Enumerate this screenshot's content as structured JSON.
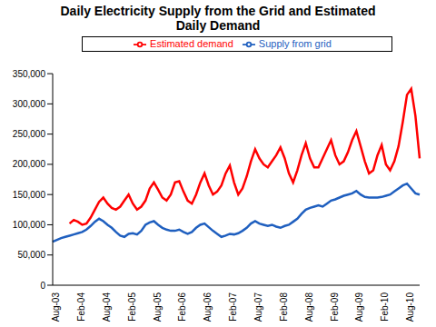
{
  "chart_data": {
    "type": "line",
    "title": "Daily Electricity Supply from the Grid and Estimated Daily Demand",
    "categories": [
      "Aug-03",
      null,
      null,
      null,
      null,
      null,
      "Feb-04",
      null,
      null,
      null,
      null,
      null,
      "Aug-04",
      null,
      null,
      null,
      null,
      null,
      "Feb-05",
      null,
      null,
      null,
      null,
      null,
      "Aug-05",
      null,
      null,
      null,
      null,
      null,
      "Feb-06",
      null,
      null,
      null,
      null,
      null,
      "Aug-06",
      null,
      null,
      null,
      null,
      null,
      "Feb-07",
      null,
      null,
      null,
      null,
      null,
      "Aug-07",
      null,
      null,
      null,
      null,
      null,
      "Feb-08",
      null,
      null,
      null,
      null,
      null,
      "Aug-08",
      null,
      null,
      null,
      null,
      null,
      "Feb-09",
      null,
      null,
      null,
      null,
      null,
      "Aug-09",
      null,
      null,
      null,
      null,
      null,
      "Feb-10",
      null,
      null,
      null,
      null,
      null,
      "Aug-10",
      null,
      null,
      null
    ],
    "series": [
      {
        "name": "Supply from grid",
        "color": "#1f5fbf",
        "values": [
          72000,
          75000,
          78000,
          80000,
          82000,
          84000,
          86000,
          88000,
          92000,
          98000,
          105000,
          110000,
          106000,
          100000,
          95000,
          88000,
          82000,
          80000,
          85000,
          86000,
          84000,
          90000,
          100000,
          104000,
          106000,
          100000,
          95000,
          92000,
          90000,
          90000,
          92000,
          88000,
          85000,
          88000,
          95000,
          100000,
          102000,
          96000,
          90000,
          85000,
          80000,
          82000,
          85000,
          84000,
          86000,
          90000,
          95000,
          102000,
          106000,
          102000,
          100000,
          98000,
          100000,
          97000,
          95000,
          98000,
          100000,
          105000,
          110000,
          118000,
          125000,
          128000,
          130000,
          132000,
          130000,
          135000,
          140000,
          142000,
          145000,
          148000,
          150000,
          152000,
          156000,
          150000,
          146000,
          145000,
          145000,
          145000,
          146000,
          148000,
          150000,
          155000,
          160000,
          165000,
          168000,
          160000,
          152000,
          150000
        ]
      },
      {
        "name": "Estimated demand",
        "color": "#ff0000",
        "values": [
          null,
          null,
          null,
          null,
          102000,
          108000,
          105000,
          100000,
          102000,
          112000,
          125000,
          138000,
          145000,
          135000,
          128000,
          125000,
          130000,
          140000,
          150000,
          135000,
          125000,
          130000,
          140000,
          160000,
          170000,
          158000,
          145000,
          140000,
          150000,
          170000,
          172000,
          155000,
          140000,
          135000,
          150000,
          170000,
          185000,
          165000,
          150000,
          155000,
          165000,
          185000,
          198000,
          170000,
          150000,
          160000,
          180000,
          205000,
          225000,
          210000,
          200000,
          195000,
          205000,
          215000,
          228000,
          210000,
          185000,
          170000,
          190000,
          215000,
          235000,
          210000,
          195000,
          195000,
          210000,
          225000,
          240000,
          215000,
          200000,
          205000,
          220000,
          240000,
          255000,
          230000,
          205000,
          185000,
          190000,
          215000,
          232000,
          200000,
          190000,
          205000,
          230000,
          270000,
          315000,
          325000,
          280000,
          210000
        ]
      }
    ],
    "ylim": [
      0,
      350000
    ],
    "yticks": [
      0,
      {
        "value": 50000,
        "label": "50,000"
      },
      {
        "value": 100000,
        "label": "100,000"
      },
      {
        "value": 150000,
        "label": "150,000"
      },
      {
        "value": 200000,
        "label": "200,000"
      },
      {
        "value": 250000,
        "label": "250,000"
      },
      {
        "value": 300000,
        "label": "300,000"
      },
      {
        "value": 350000,
        "label": "350,000"
      }
    ],
    "legend": "top",
    "grid": false
  }
}
